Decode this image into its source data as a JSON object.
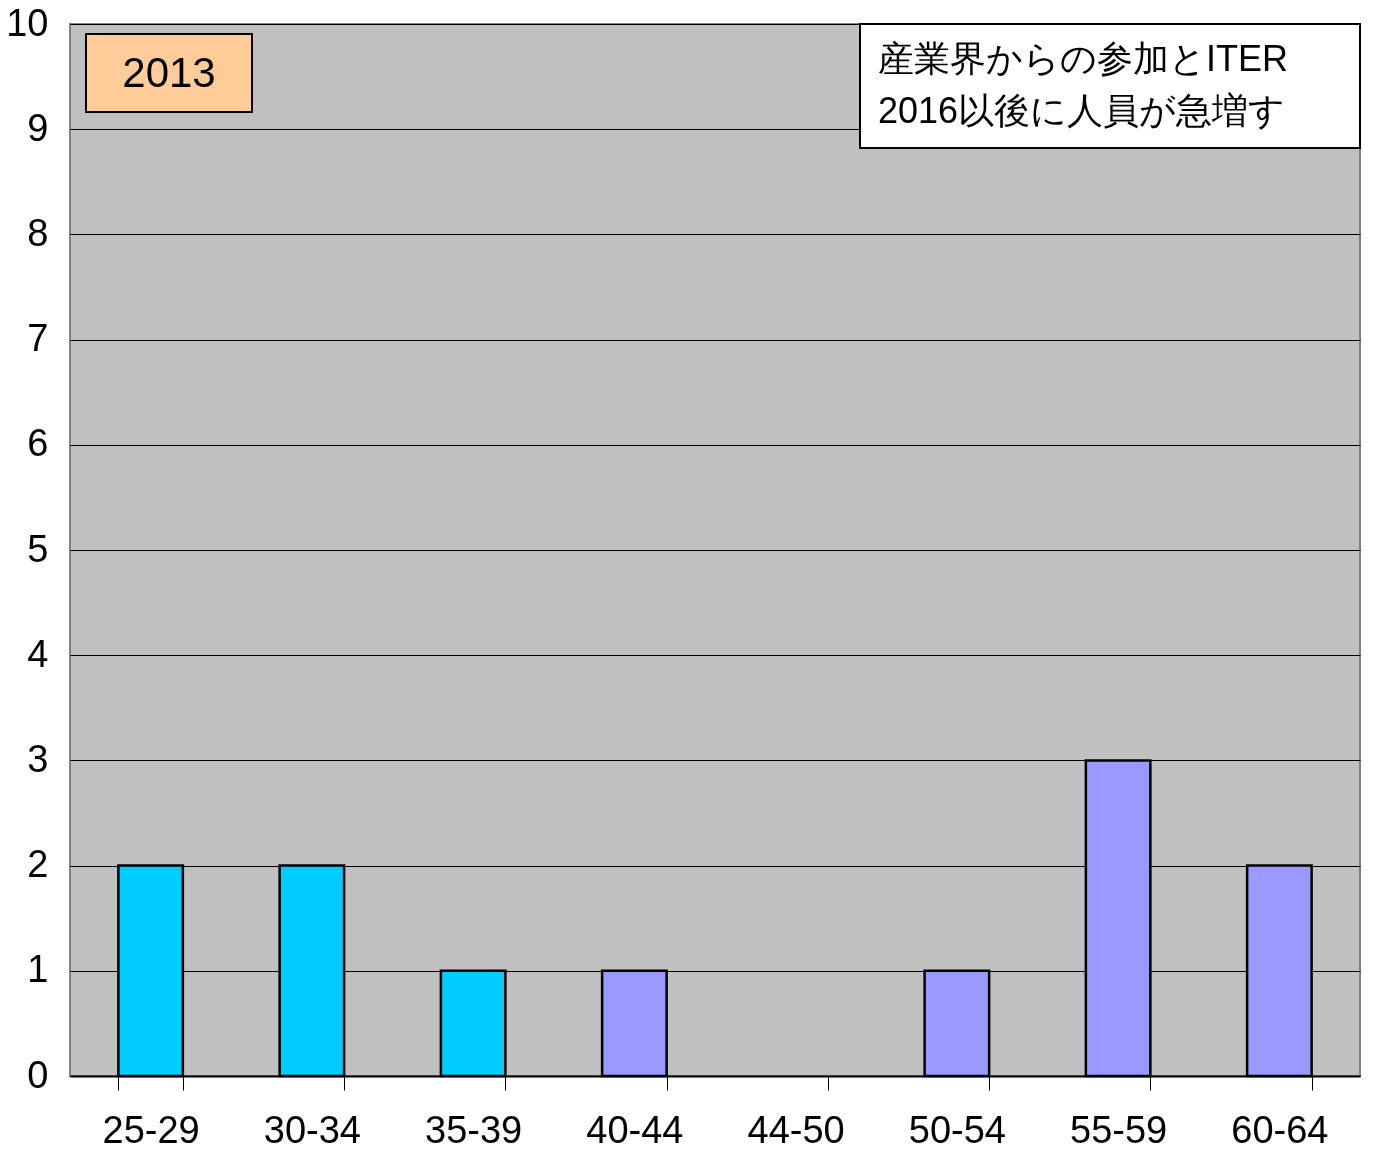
{
  "chart_data": {
    "type": "bar",
    "categories": [
      "25-29",
      "30-34",
      "35-39",
      "40-44",
      "44-50",
      "50-54",
      "55-59",
      "60-64"
    ],
    "values": [
      2,
      2,
      1,
      1,
      0,
      1,
      3,
      2
    ],
    "colors": [
      "#00ccff",
      "#00ccff",
      "#00ccff",
      "#9999ff",
      null,
      "#9999ff",
      "#9999ff",
      "#9999ff"
    ],
    "ylim": [
      0,
      10
    ],
    "yticks": [
      0,
      1,
      2,
      3,
      4,
      5,
      6,
      7,
      8,
      9,
      10
    ],
    "grid": "y",
    "annotations": [
      "2013",
      "産業界からの参加とITER",
      "2016以後に人員が急増す"
    ]
  }
}
